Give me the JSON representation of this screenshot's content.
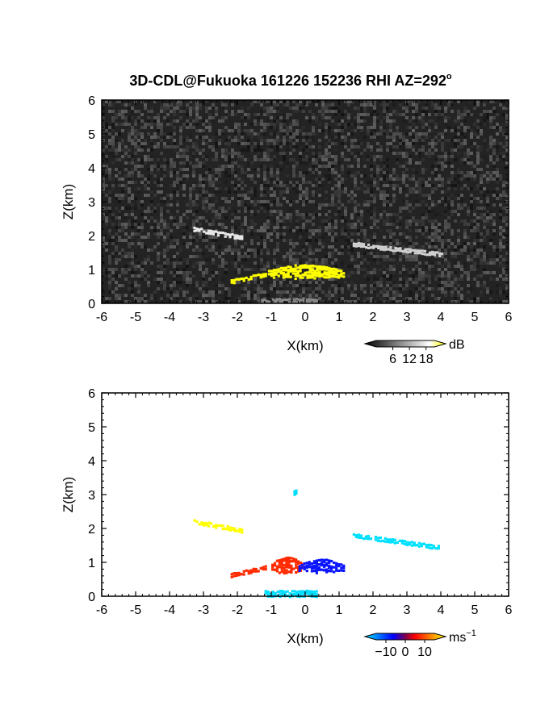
{
  "figure": {
    "title": "3D-CDL@Fukuoka 161226 152236 RHI AZ=292",
    "title_superscript": "o"
  },
  "chart_data": [
    {
      "type": "heatmap",
      "name": "reflectivity",
      "xlabel": "X(km)",
      "ylabel": "Z(km)",
      "xlim": [
        -6,
        6
      ],
      "ylim": [
        0,
        6
      ],
      "xticks": [
        "-6",
        "-5",
        "-4",
        "-3",
        "-2",
        "-1",
        "0",
        "1",
        "2",
        "3",
        "4",
        "5",
        "6"
      ],
      "yticks": [
        "0",
        "1",
        "2",
        "3",
        "4",
        "5",
        "6"
      ],
      "background": "noise",
      "colorbar": {
        "unit": "dB",
        "ticks": [
          "6",
          "12",
          "18"
        ],
        "range": [
          0,
          21
        ],
        "colors": [
          "#000000",
          "#ffffff",
          "#ffff00"
        ]
      },
      "features": [
        {
          "label": "echo layer west",
          "x": [
            -3.3,
            -1.9
          ],
          "z": [
            2.2,
            1.95
          ],
          "value": 14,
          "color": "#e8e8e8"
        },
        {
          "label": "echo layer east",
          "x": [
            1.4,
            4.0
          ],
          "z": [
            1.75,
            1.45
          ],
          "value": 12,
          "color": "#d0d0d0"
        },
        {
          "label": "low cloud core",
          "x": [
            -1.1,
            1.1
          ],
          "z": [
            0.7,
            1.05
          ],
          "value": 21,
          "color": "#ffff00"
        },
        {
          "label": "low cloud west",
          "x": [
            -2.2,
            -1.2
          ],
          "z": [
            0.65,
            0.85
          ],
          "value": 18,
          "color": "#ffff00"
        },
        {
          "label": "surface echo",
          "x": [
            -1.3,
            0.3
          ],
          "z": [
            0.0,
            0.15
          ],
          "value": 8,
          "color": "#888888"
        }
      ]
    },
    {
      "type": "heatmap",
      "name": "doppler velocity",
      "xlabel": "X(km)",
      "ylabel": "Z(km)",
      "xlim": [
        -6,
        6
      ],
      "ylim": [
        0,
        6
      ],
      "xticks": [
        "-6",
        "-5",
        "-4",
        "-3",
        "-2",
        "-1",
        "0",
        "1",
        "2",
        "3",
        "4",
        "5",
        "6"
      ],
      "yticks": [
        "0",
        "1",
        "2",
        "3",
        "4",
        "5",
        "6"
      ],
      "background": "none",
      "colorbar": {
        "unit": "ms",
        "unit_exponent": "−1",
        "ticks": [
          "−10",
          "0",
          "10"
        ],
        "range": [
          -15,
          15
        ],
        "colors": [
          "#00e5ff",
          "#0000ff",
          "#ff0000",
          "#ffff00"
        ]
      },
      "features": [
        {
          "label": "echo layer west",
          "x": [
            -3.3,
            -1.9
          ],
          "z": [
            2.2,
            1.95
          ],
          "value": 12,
          "color": "#ffff00"
        },
        {
          "label": "echo layer east",
          "x": [
            1.4,
            3.9
          ],
          "z": [
            1.8,
            1.45
          ],
          "value": -13,
          "color": "#00e0ff"
        },
        {
          "label": "low cloud approaching",
          "x": [
            -1.0,
            -0.1
          ],
          "z": [
            0.65,
            1.05
          ],
          "value": 4,
          "color": "#ff2a00"
        },
        {
          "label": "low cloud receding",
          "x": [
            -0.2,
            1.1
          ],
          "z": [
            0.65,
            1.0
          ],
          "value": -4,
          "color": "#0a14ff"
        },
        {
          "label": "low cloud west",
          "x": [
            -2.2,
            -1.2
          ],
          "z": [
            0.62,
            0.85
          ],
          "value": 3,
          "color": "#ff2a00"
        },
        {
          "label": "surface echo",
          "x": [
            -1.2,
            0.3
          ],
          "z": [
            0.0,
            0.18
          ],
          "value": -12,
          "color": "#00ddff"
        },
        {
          "label": "isolated pixel",
          "x": [
            -0.35,
            -0.3
          ],
          "z": [
            3.05,
            3.1
          ],
          "value": -12,
          "color": "#00ddff"
        }
      ]
    }
  ]
}
